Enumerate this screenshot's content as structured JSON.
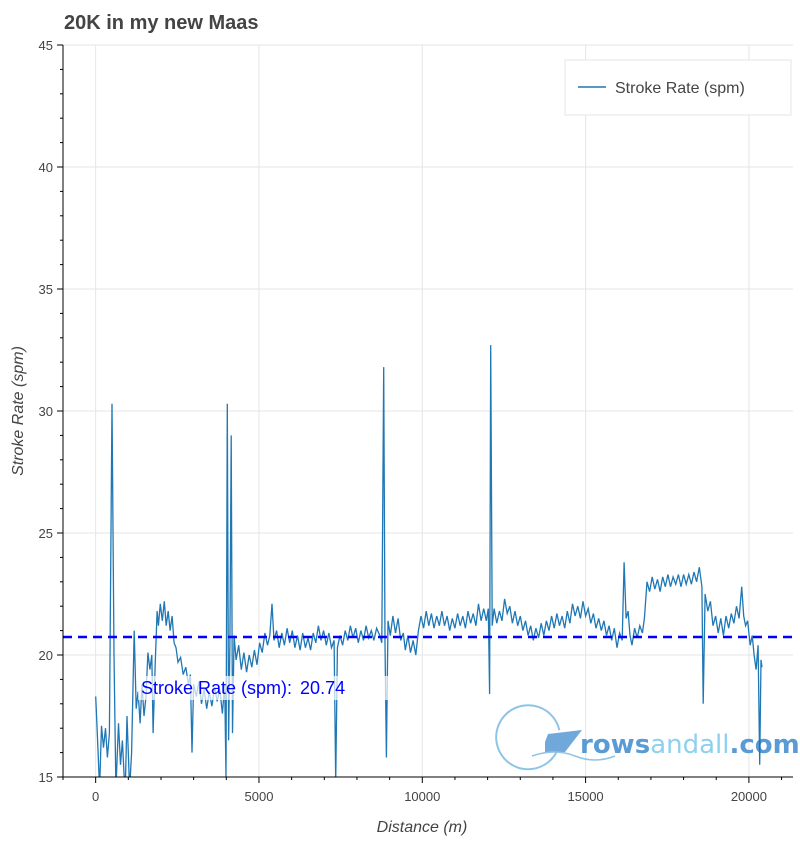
{
  "chart_data": {
    "type": "line",
    "title": "20K in my new Maas",
    "xlabel": "Distance (m)",
    "ylabel": "Stroke Rate (spm)",
    "xlim": [
      -1000,
      21350
    ],
    "ylim": [
      15,
      45
    ],
    "xticks": [
      0,
      5000,
      10000,
      15000,
      20000
    ],
    "yticks": [
      15,
      20,
      25,
      30,
      35,
      40,
      45
    ],
    "grid": true,
    "legend": {
      "position": "top-right",
      "entries": [
        "Stroke Rate (spm)"
      ]
    },
    "series": [
      {
        "name": "Stroke Rate (spm)",
        "color": "#1f77b4",
        "points": [
          [
            0,
            18.3
          ],
          [
            60,
            16.5
          ],
          [
            120,
            14.5
          ],
          [
            180,
            17.1
          ],
          [
            240,
            16.2
          ],
          [
            300,
            17
          ],
          [
            360,
            15.8
          ],
          [
            420,
            16.8
          ],
          [
            500,
            30.3
          ],
          [
            560,
            20
          ],
          [
            620,
            14.5
          ],
          [
            700,
            17.2
          ],
          [
            760,
            15.5
          ],
          [
            820,
            16.5
          ],
          [
            900,
            14.2
          ],
          [
            960,
            17.5
          ],
          [
            1040,
            14.5
          ],
          [
            1100,
            16
          ],
          [
            1180,
            21
          ],
          [
            1240,
            17.8
          ],
          [
            1300,
            18.5
          ],
          [
            1360,
            17.2
          ],
          [
            1420,
            18.8
          ],
          [
            1480,
            17.5
          ],
          [
            1540,
            18.3
          ],
          [
            1600,
            20.1
          ],
          [
            1660,
            19.4
          ],
          [
            1720,
            20
          ],
          [
            1760,
            16.8
          ],
          [
            1820,
            19.5
          ],
          [
            1880,
            21.8
          ],
          [
            1920,
            21.2
          ],
          [
            1980,
            22.1
          ],
          [
            2040,
            21.4
          ],
          [
            2100,
            22.2
          ],
          [
            2160,
            21.2
          ],
          [
            2220,
            21.8
          ],
          [
            2280,
            21
          ],
          [
            2340,
            21.6
          ],
          [
            2400,
            20.5
          ],
          [
            2460,
            20.3
          ],
          [
            2520,
            19.7
          ],
          [
            2600,
            19.9
          ],
          [
            2680,
            19.2
          ],
          [
            2760,
            19.5
          ],
          [
            2840,
            18.8
          ],
          [
            2900,
            19.2
          ],
          [
            2950,
            16
          ],
          [
            3000,
            18.8
          ],
          [
            3080,
            18.3
          ],
          [
            3160,
            18.9
          ],
          [
            3240,
            18
          ],
          [
            3320,
            18.6
          ],
          [
            3400,
            17.8
          ],
          [
            3480,
            18.5
          ],
          [
            3560,
            17.9
          ],
          [
            3640,
            18.7
          ],
          [
            3720,
            18.1
          ],
          [
            3800,
            18.6
          ],
          [
            3880,
            17.6
          ],
          [
            3950,
            18.8
          ],
          [
            3990,
            15
          ],
          [
            4030,
            30.3
          ],
          [
            4070,
            16.5
          ],
          [
            4110,
            20.5
          ],
          [
            4150,
            29
          ],
          [
            4190,
            16.8
          ],
          [
            4240,
            20.8
          ],
          [
            4300,
            19.8
          ],
          [
            4380,
            20.4
          ],
          [
            4460,
            19.4
          ],
          [
            4540,
            20.1
          ],
          [
            4620,
            19.3
          ],
          [
            4700,
            20
          ],
          [
            4780,
            19.5
          ],
          [
            4860,
            20.2
          ],
          [
            4940,
            19.6
          ],
          [
            5020,
            20.5
          ],
          [
            5100,
            20.1
          ],
          [
            5180,
            20.9
          ],
          [
            5260,
            20.4
          ],
          [
            5330,
            20.8
          ],
          [
            5400,
            22.1
          ],
          [
            5460,
            20.6
          ],
          [
            5540,
            21
          ],
          [
            5620,
            20.3
          ],
          [
            5700,
            20.9
          ],
          [
            5780,
            20.4
          ],
          [
            5860,
            21.1
          ],
          [
            5940,
            20.5
          ],
          [
            6020,
            21
          ],
          [
            6100,
            20.3
          ],
          [
            6180,
            20.8
          ],
          [
            6260,
            20.2
          ],
          [
            6340,
            20.9
          ],
          [
            6420,
            20.3
          ],
          [
            6500,
            20.7
          ],
          [
            6580,
            20.2
          ],
          [
            6660,
            20.9
          ],
          [
            6740,
            20.5
          ],
          [
            6820,
            21.2
          ],
          [
            6900,
            20.6
          ],
          [
            6980,
            21
          ],
          [
            7060,
            20.4
          ],
          [
            7140,
            20.9
          ],
          [
            7220,
            20.3
          ],
          [
            7300,
            20.6
          ],
          [
            7350,
            14.8
          ],
          [
            7400,
            20.3
          ],
          [
            7480,
            20.8
          ],
          [
            7560,
            20.4
          ],
          [
            7640,
            21
          ],
          [
            7720,
            20.6
          ],
          [
            7800,
            21.2
          ],
          [
            7880,
            20.7
          ],
          [
            7960,
            21.1
          ],
          [
            8040,
            20.5
          ],
          [
            8120,
            21
          ],
          [
            8200,
            20.6
          ],
          [
            8280,
            21.2
          ],
          [
            8360,
            20.7
          ],
          [
            8440,
            21
          ],
          [
            8520,
            20.6
          ],
          [
            8600,
            21.1
          ],
          [
            8700,
            20.8
          ],
          [
            8760,
            20.5
          ],
          [
            8820,
            31.8
          ],
          [
            8860,
            20.5
          ],
          [
            8900,
            15.8
          ],
          [
            8950,
            21.4
          ],
          [
            9020,
            20.8
          ],
          [
            9100,
            21.6
          ],
          [
            9180,
            20.9
          ],
          [
            9260,
            21.5
          ],
          [
            9340,
            20.6
          ],
          [
            9420,
            20.9
          ],
          [
            9480,
            20.2
          ],
          [
            9560,
            20.8
          ],
          [
            9640,
            20.1
          ],
          [
            9720,
            20.6
          ],
          [
            9800,
            20
          ],
          [
            9880,
            21
          ],
          [
            9960,
            21.6
          ],
          [
            10040,
            21.1
          ],
          [
            10120,
            21.8
          ],
          [
            10200,
            21.2
          ],
          [
            10280,
            21.7
          ],
          [
            10360,
            21.1
          ],
          [
            10440,
            21.6
          ],
          [
            10520,
            21.2
          ],
          [
            10600,
            21.8
          ],
          [
            10680,
            21.2
          ],
          [
            10760,
            21.6
          ],
          [
            10840,
            21
          ],
          [
            10920,
            21.5
          ],
          [
            11000,
            21.1
          ],
          [
            11080,
            21.7
          ],
          [
            11160,
            21.2
          ],
          [
            11240,
            21.6
          ],
          [
            11320,
            21.1
          ],
          [
            11400,
            21.8
          ],
          [
            11480,
            21.3
          ],
          [
            11560,
            21.7
          ],
          [
            11640,
            21.2
          ],
          [
            11720,
            22.1
          ],
          [
            11800,
            21.4
          ],
          [
            11880,
            21.9
          ],
          [
            11960,
            21.4
          ],
          [
            12020,
            21.9
          ],
          [
            12060,
            18.4
          ],
          [
            12095,
            32.7
          ],
          [
            12140,
            21.2
          ],
          [
            12200,
            21.9
          ],
          [
            12280,
            21.3
          ],
          [
            12360,
            21.8
          ],
          [
            12440,
            21.4
          ],
          [
            12520,
            22.3
          ],
          [
            12600,
            21.7
          ],
          [
            12680,
            22
          ],
          [
            12760,
            21.3
          ],
          [
            12840,
            21.8
          ],
          [
            12920,
            21.2
          ],
          [
            13000,
            21.6
          ],
          [
            13080,
            21
          ],
          [
            13160,
            21.4
          ],
          [
            13240,
            20.8
          ],
          [
            13320,
            21.2
          ],
          [
            13400,
            20.6
          ],
          [
            13480,
            21.1
          ],
          [
            13560,
            20.7
          ],
          [
            13640,
            21.3
          ],
          [
            13720,
            20.8
          ],
          [
            13800,
            21.4
          ],
          [
            13880,
            21
          ],
          [
            13960,
            21.6
          ],
          [
            14040,
            21.1
          ],
          [
            14120,
            21.7
          ],
          [
            14200,
            21.2
          ],
          [
            14280,
            21.6
          ],
          [
            14360,
            21.1
          ],
          [
            14440,
            21.8
          ],
          [
            14520,
            21.3
          ],
          [
            14600,
            22.1
          ],
          [
            14680,
            21.6
          ],
          [
            14760,
            22
          ],
          [
            14840,
            21.5
          ],
          [
            14920,
            22.2
          ],
          [
            15000,
            21.6
          ],
          [
            15080,
            21.9
          ],
          [
            15160,
            21.3
          ],
          [
            15240,
            21.7
          ],
          [
            15320,
            21.1
          ],
          [
            15400,
            21.5
          ],
          [
            15480,
            21
          ],
          [
            15560,
            21.4
          ],
          [
            15640,
            20.8
          ],
          [
            15720,
            21.2
          ],
          [
            15800,
            20.6
          ],
          [
            15880,
            21.1
          ],
          [
            15960,
            20.3
          ],
          [
            16040,
            20.9
          ],
          [
            16120,
            20.6
          ],
          [
            16180,
            23.8
          ],
          [
            16240,
            21.5
          ],
          [
            16300,
            21.8
          ],
          [
            16360,
            20.8
          ],
          [
            16420,
            20.4
          ],
          [
            16500,
            21.1
          ],
          [
            16580,
            20.7
          ],
          [
            16660,
            21.2
          ],
          [
            16740,
            20.9
          ],
          [
            16800,
            21.5
          ],
          [
            16880,
            23
          ],
          [
            16960,
            22.6
          ],
          [
            17040,
            23.2
          ],
          [
            17120,
            22.7
          ],
          [
            17200,
            23.1
          ],
          [
            17280,
            22.6
          ],
          [
            17360,
            23.2
          ],
          [
            17440,
            22.8
          ],
          [
            17520,
            23.3
          ],
          [
            17600,
            22.8
          ],
          [
            17680,
            23.2
          ],
          [
            17760,
            22.9
          ],
          [
            17840,
            23.3
          ],
          [
            17920,
            22.8
          ],
          [
            18000,
            23.3
          ],
          [
            18080,
            22.9
          ],
          [
            18160,
            23.3
          ],
          [
            18240,
            22.9
          ],
          [
            18320,
            23.4
          ],
          [
            18400,
            23
          ],
          [
            18480,
            23.6
          ],
          [
            18560,
            22.8
          ],
          [
            18600,
            18
          ],
          [
            18660,
            22.5
          ],
          [
            18740,
            21.8
          ],
          [
            18820,
            22.2
          ],
          [
            18900,
            21.2
          ],
          [
            18980,
            21.6
          ],
          [
            19060,
            20.9
          ],
          [
            19140,
            21.5
          ],
          [
            19220,
            20.8
          ],
          [
            19300,
            21.6
          ],
          [
            19380,
            21.1
          ],
          [
            19460,
            21.7
          ],
          [
            19540,
            21.3
          ],
          [
            19620,
            22
          ],
          [
            19700,
            21.5
          ],
          [
            19780,
            22.8
          ],
          [
            19840,
            21.6
          ],
          [
            19900,
            21.2
          ],
          [
            19960,
            21.4
          ],
          [
            20040,
            20.4
          ],
          [
            20100,
            20.8
          ],
          [
            20160,
            20
          ],
          [
            20220,
            19.4
          ],
          [
            20280,
            20.4
          ],
          [
            20330,
            15.5
          ],
          [
            20370,
            19.8
          ],
          [
            20400,
            19.5
          ]
        ]
      }
    ],
    "annotations": [
      {
        "type": "hline",
        "y": 20.74,
        "color": "#0000ff",
        "style": "dashed",
        "label": "Stroke Rate (spm):",
        "value": "20.74"
      }
    ]
  },
  "watermark": {
    "text_a": "rows",
    "text_b": "andall",
    "text_c": ".com"
  }
}
